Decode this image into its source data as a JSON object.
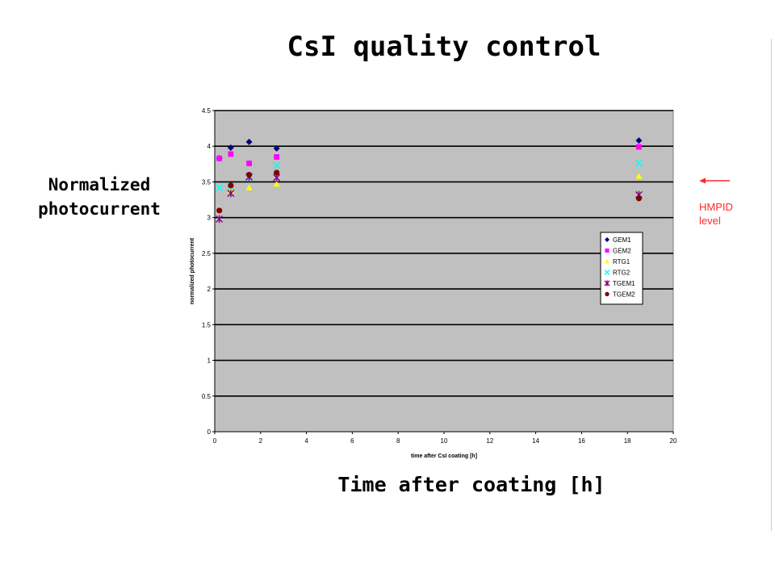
{
  "slide": {
    "title": "CsI quality control",
    "side_ylabel_line1": "Normalized",
    "side_ylabel_line2": "photocurrent",
    "bottom_xlabel": "Time after coating [h]",
    "hmpid_label_line1": "HMPID",
    "hmpid_label_line2": "level",
    "hmpid_color": "#ff2a2a"
  },
  "chart_data": {
    "type": "scatter",
    "xlabel": "time after CsI coating [h]",
    "ylabel": "normalized photocurrent",
    "xlim": [
      0,
      20
    ],
    "ylim": [
      0,
      4.5
    ],
    "xticks": [
      "0",
      "2",
      "4",
      "6",
      "8",
      "10",
      "12",
      "14",
      "16",
      "18",
      "20"
    ],
    "yticks": [
      "0",
      "0.5",
      "1",
      "1.5",
      "2",
      "2.5",
      "3",
      "3.5",
      "4",
      "4.5"
    ],
    "grid": true,
    "legend_position": "right",
    "plot_background": "#c0c0c0",
    "series": [
      {
        "name": "GEM1",
        "marker": "diamond",
        "color": "#000080",
        "x": [
          0.2,
          0.7,
          1.5,
          2.7,
          18.5
        ],
        "y": [
          3.83,
          3.98,
          4.06,
          3.97,
          4.08
        ]
      },
      {
        "name": "GEM2",
        "marker": "square",
        "color": "#ff00ff",
        "x": [
          0.2,
          0.7,
          1.5,
          2.7,
          18.5
        ],
        "y": [
          3.83,
          3.89,
          3.76,
          3.85,
          3.99
        ]
      },
      {
        "name": "RTG1",
        "marker": "triangle",
        "color": "#ffff00",
        "x": [
          0.2,
          0.7,
          1.5,
          2.7,
          18.5
        ],
        "y": [
          3.12,
          3.38,
          3.42,
          3.47,
          3.58
        ]
      },
      {
        "name": "RTG2",
        "marker": "x",
        "color": "#00ffff",
        "x": [
          0.2,
          0.7,
          1.5,
          2.7,
          18.5
        ],
        "y": [
          3.42,
          3.44,
          3.56,
          3.73,
          3.76
        ]
      },
      {
        "name": "TGEM1",
        "marker": "star",
        "color": "#800080",
        "x": [
          0.2,
          0.7,
          1.5,
          2.7,
          18.5
        ],
        "y": [
          2.98,
          3.34,
          3.57,
          3.56,
          3.32
        ]
      },
      {
        "name": "TGEM2",
        "marker": "circle",
        "color": "#800000",
        "x": [
          0.2,
          0.7,
          1.5,
          2.7,
          18.5
        ],
        "y": [
          3.1,
          3.45,
          3.6,
          3.63,
          3.27
        ]
      }
    ]
  }
}
